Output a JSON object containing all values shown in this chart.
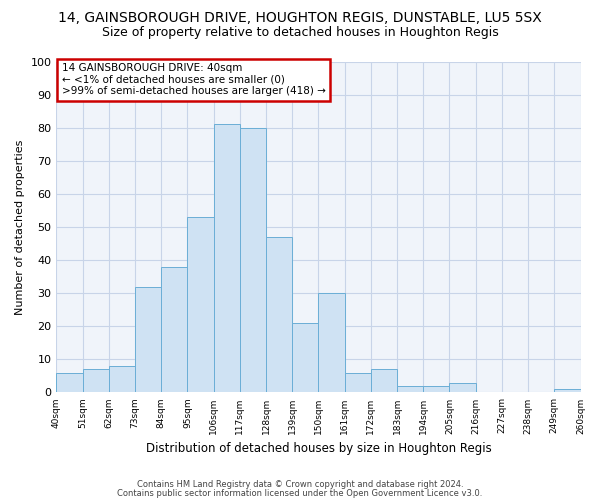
{
  "title": "14, GAINSBOROUGH DRIVE, HOUGHTON REGIS, DUNSTABLE, LU5 5SX",
  "subtitle": "Size of property relative to detached houses in Houghton Regis",
  "xlabel": "Distribution of detached houses by size in Houghton Regis",
  "ylabel": "Number of detached properties",
  "bar_values": [
    6,
    7,
    8,
    32,
    38,
    53,
    81,
    80,
    47,
    21,
    30,
    6,
    7,
    2,
    2,
    3,
    0,
    0,
    0,
    1
  ],
  "bin_labels": [
    "40sqm",
    "51sqm",
    "62sqm",
    "73sqm",
    "84sqm",
    "95sqm",
    "106sqm",
    "117sqm",
    "128sqm",
    "139sqm",
    "150sqm",
    "161sqm",
    "172sqm",
    "183sqm",
    "194sqm",
    "205sqm",
    "216sqm",
    "227sqm",
    "238sqm",
    "249sqm",
    "260sqm"
  ],
  "bar_color": "#cfe2f3",
  "bar_edge_color": "#6baed6",
  "annotation_line1": "14 GAINSBOROUGH DRIVE: 40sqm",
  "annotation_line2": "← <1% of detached houses are smaller (0)",
  "annotation_line3": ">99% of semi-detached houses are larger (418) →",
  "annotation_box_edge": "#cc0000",
  "annotation_box_face": "#ffffff",
  "ylim": [
    0,
    100
  ],
  "yticks": [
    0,
    10,
    20,
    30,
    40,
    50,
    60,
    70,
    80,
    90,
    100
  ],
  "footer_line1": "Contains HM Land Registry data © Crown copyright and database right 2024.",
  "footer_line2": "Contains public sector information licensed under the Open Government Licence v3.0.",
  "bg_color": "#ffffff",
  "plot_bg_color": "#f0f4fa",
  "grid_color": "#c8d4e8",
  "title_fontsize": 10,
  "subtitle_fontsize": 9
}
